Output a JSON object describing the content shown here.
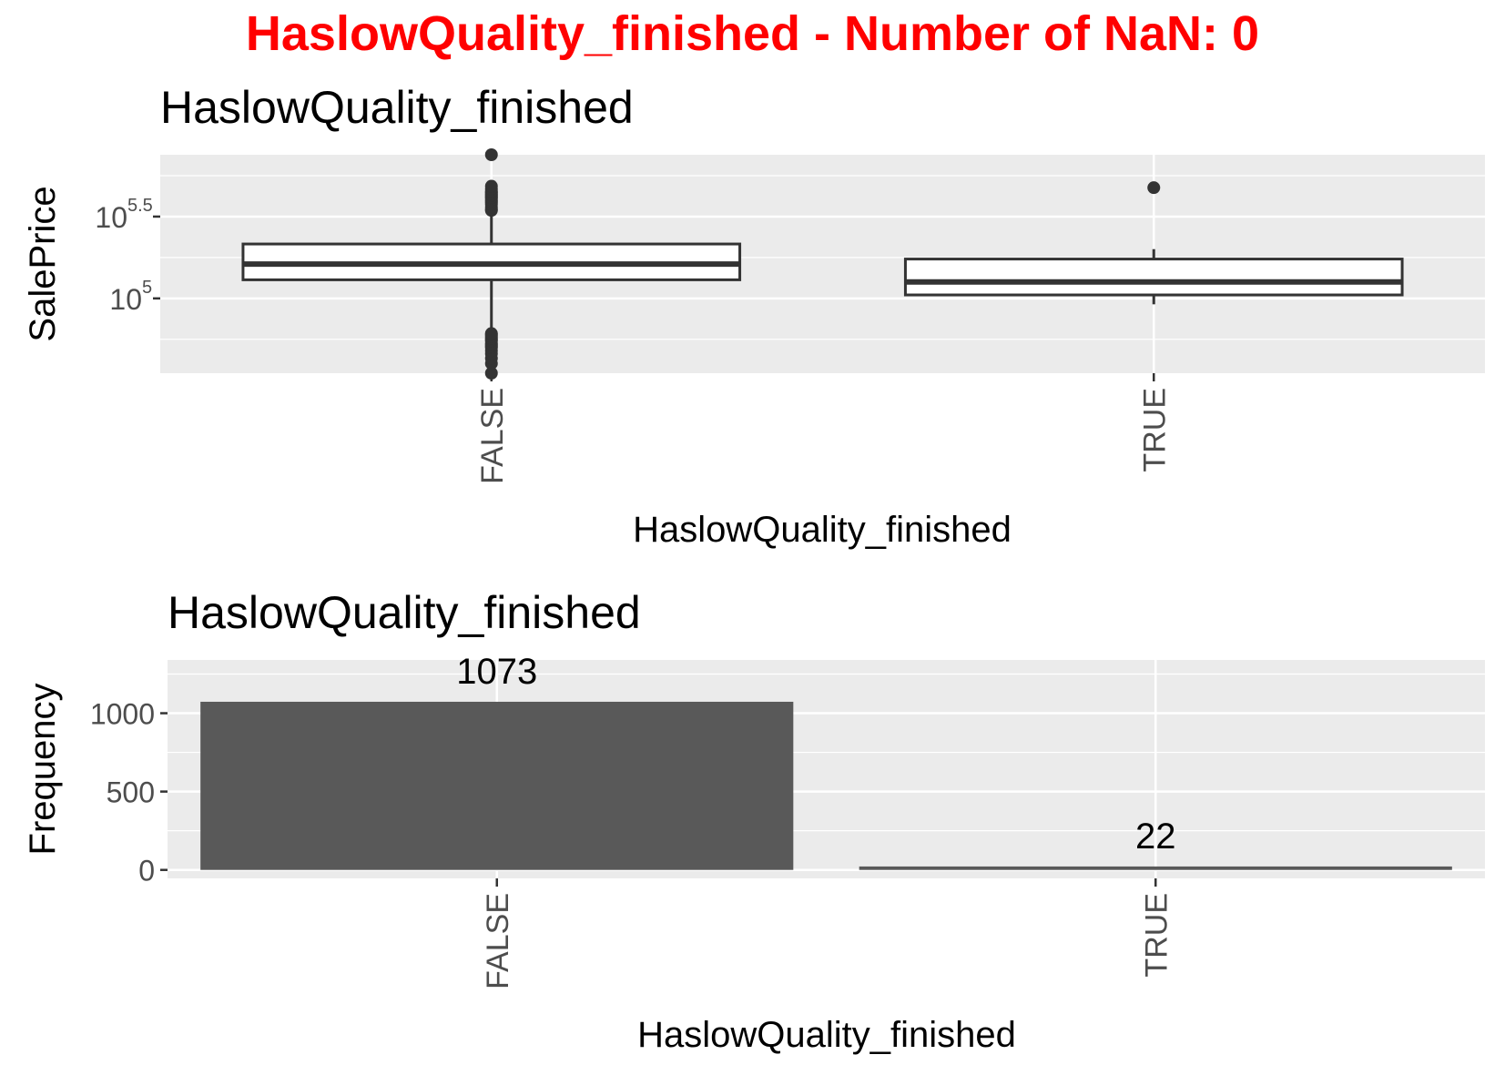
{
  "main_title": "HaslowQuality_finished - Number of NaN: 0",
  "colors": {
    "main_title": "#ff0000",
    "panel_bg": "#ebebeb",
    "grid": "#ffffff",
    "bar_fill": "#595959",
    "box_line": "#333333",
    "box_fill": "#ffffff",
    "text": "#000000",
    "tick_text": "#4d4d4d"
  },
  "chart_data": [
    {
      "type": "boxplot",
      "title": "HaslowQuality_finished",
      "xlabel": "HaslowQuality_finished",
      "ylabel": "SalePrice",
      "y_scale": "log10",
      "categories": [
        "FALSE",
        "TRUE"
      ],
      "y_ticks": [
        {
          "base": "10",
          "exp": "5",
          "value": 100000
        },
        {
          "base": "10",
          "exp": "5.5",
          "value": 316228
        }
      ],
      "ylim": [
        34900,
        755000
      ],
      "boxes": [
        {
          "category": "FALSE",
          "q1": 129900,
          "median": 162000,
          "q3": 215000,
          "whisker_low": 62000,
          "whisker_high": 340000,
          "outliers": [
            34900,
            40000,
            43000,
            46000,
            48000,
            50000,
            51000,
            52000,
            53000,
            55000,
            55993,
            57000,
            58500,
            60000,
            61000,
            345000,
            350000,
            360000,
            375000,
            385000,
            392000,
            400000,
            410000,
            415000,
            425000,
            430000,
            438780,
            446261,
            451950,
            466500,
            485000,
            755000
          ]
        },
        {
          "category": "TRUE",
          "q1": 105000,
          "median": 126000,
          "q3": 174000,
          "whisker_low": 92000,
          "whisker_high": 200000,
          "outliers": [
            475000
          ]
        }
      ],
      "grid": true
    },
    {
      "type": "bar",
      "title": "HaslowQuality_finished",
      "xlabel": "HaslowQuality_finished",
      "ylabel": "Frequency",
      "categories": [
        "FALSE",
        "TRUE"
      ],
      "values": [
        1073,
        22
      ],
      "data_labels": [
        "1073",
        "22"
      ],
      "y_ticks": [
        "0",
        "500",
        "1000"
      ],
      "y_tick_values": [
        0,
        500,
        1000
      ],
      "ylim": [
        -54,
        1340
      ],
      "grid": true
    }
  ]
}
